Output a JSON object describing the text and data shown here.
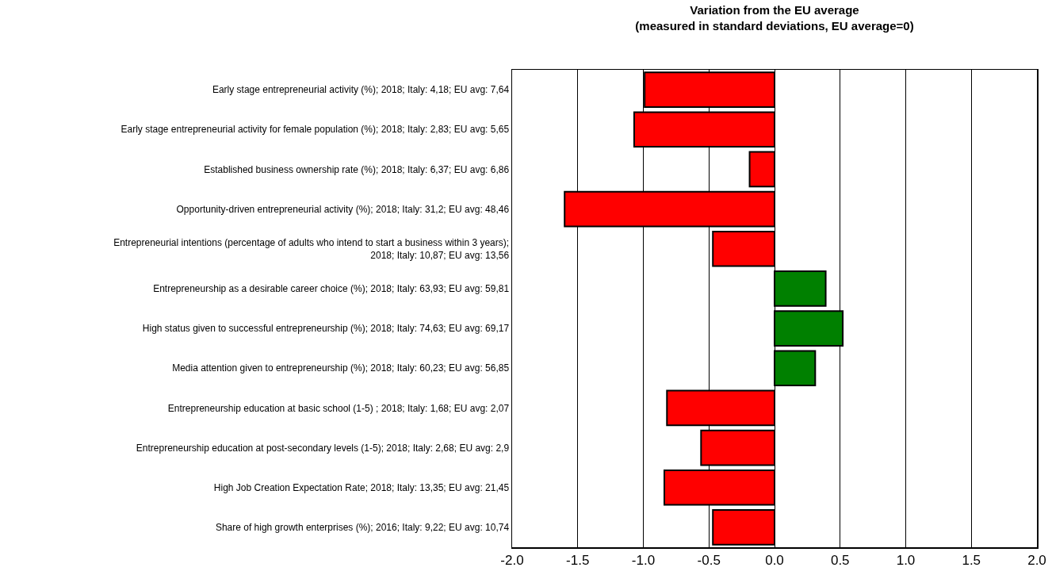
{
  "chart_data": {
    "type": "bar",
    "orientation": "horizontal",
    "title": "Variation from the EU average\n(measured in standard deviations, EU average=0)",
    "categories": [
      "Early stage entrepreneurial activity (%); 2018; Italy: 4,18; EU avg: 7,64",
      "Early stage entrepreneurial activity for female population (%); 2018; Italy: 2,83; EU avg: 5,65",
      "Established business ownership rate (%); 2018; Italy: 6,37; EU avg: 6,86",
      "Opportunity-driven entrepreneurial activity (%); 2018; Italy: 31,2; EU avg: 48,46",
      "Entrepreneurial intentions (percentage of adults who intend to start a business within 3 years);\n2018; Italy: 10,87; EU avg: 13,56",
      "Entrepreneurship as a desirable career choice (%); 2018; Italy: 63,93; EU avg: 59,81",
      "High status given to successful entrepreneurship (%); 2018; Italy: 74,63; EU avg: 69,17",
      "Media attention given to entrepreneurship (%); 2018; Italy: 60,23; EU avg: 56,85",
      "Entrepreneurship education at basic school (1-5) ; 2018; Italy: 1,68; EU avg: 2,07",
      "Entrepreneurship education at post-secondary levels (1-5); 2018; Italy: 2,68; EU avg: 2,9",
      "High Job Creation Expectation Rate; 2018; Italy: 13,35; EU avg: 21,45",
      "Share of high growth enterprises (%); 2016; Italy: 9,22; EU avg: 10,74"
    ],
    "values": [
      -0.99,
      -1.07,
      -0.19,
      -1.6,
      -0.47,
      0.39,
      0.52,
      0.31,
      -0.82,
      -0.56,
      -0.84,
      -0.47
    ],
    "colors": [
      "#ff0000",
      "#ff0000",
      "#ff0000",
      "#ff0000",
      "#ff0000",
      "#008000",
      "#008000",
      "#008000",
      "#ff0000",
      "#ff0000",
      "#ff0000",
      "#ff0000"
    ],
    "xlim": [
      -2,
      2
    ],
    "xticks": [
      {
        "value": -2,
        "label": "-2.0"
      },
      {
        "value": -1.5,
        "label": "-1.5"
      },
      {
        "value": -1,
        "label": "-1.0"
      },
      {
        "value": -0.5,
        "label": "-0.5"
      },
      {
        "value": 0,
        "label": "0.0"
      },
      {
        "value": 0.5,
        "label": "0.5"
      },
      {
        "value": 1,
        "label": "1.0"
      },
      {
        "value": 1.5,
        "label": "1.5"
      },
      {
        "value": 2,
        "label": "2.0"
      }
    ],
    "grid": "x"
  }
}
